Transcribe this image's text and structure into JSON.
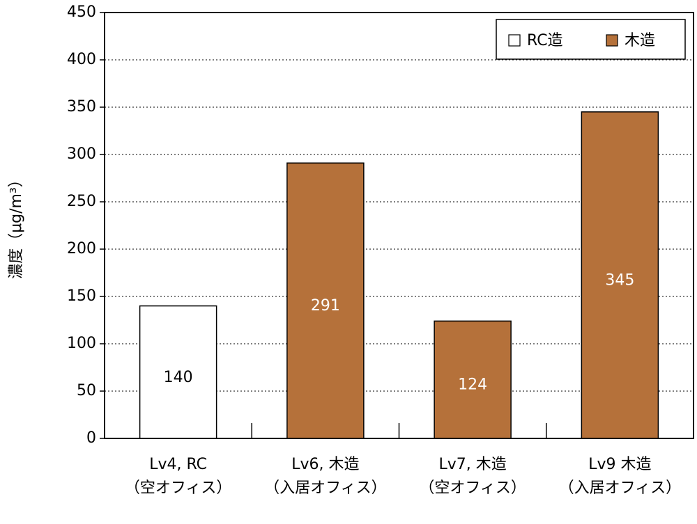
{
  "chart_data": {
    "type": "bar",
    "y_label": "濃度（μg/m³）",
    "categories": [
      [
        "Lv4, RC",
        "（空オフィス）"
      ],
      [
        "Lv6, 木造",
        "（入居オフィス）"
      ],
      [
        "Lv7, 木造",
        "（空オフィス）"
      ],
      [
        "Lv9 木造",
        "（入居オフィス）"
      ]
    ],
    "series": [
      {
        "name": "RC造",
        "color": "#ffffff",
        "label_color": "#000000",
        "values": [
          140,
          null,
          null,
          null
        ]
      },
      {
        "name": "木造",
        "color": "#b5713a",
        "label_color": "#ffffff",
        "values": [
          null,
          291,
          124,
          345
        ]
      }
    ],
    "ylim": [
      0,
      450
    ],
    "yticks": [
      0,
      50,
      100,
      150,
      200,
      250,
      300,
      350,
      400,
      450
    ],
    "grid": true,
    "legend": "upper right"
  }
}
